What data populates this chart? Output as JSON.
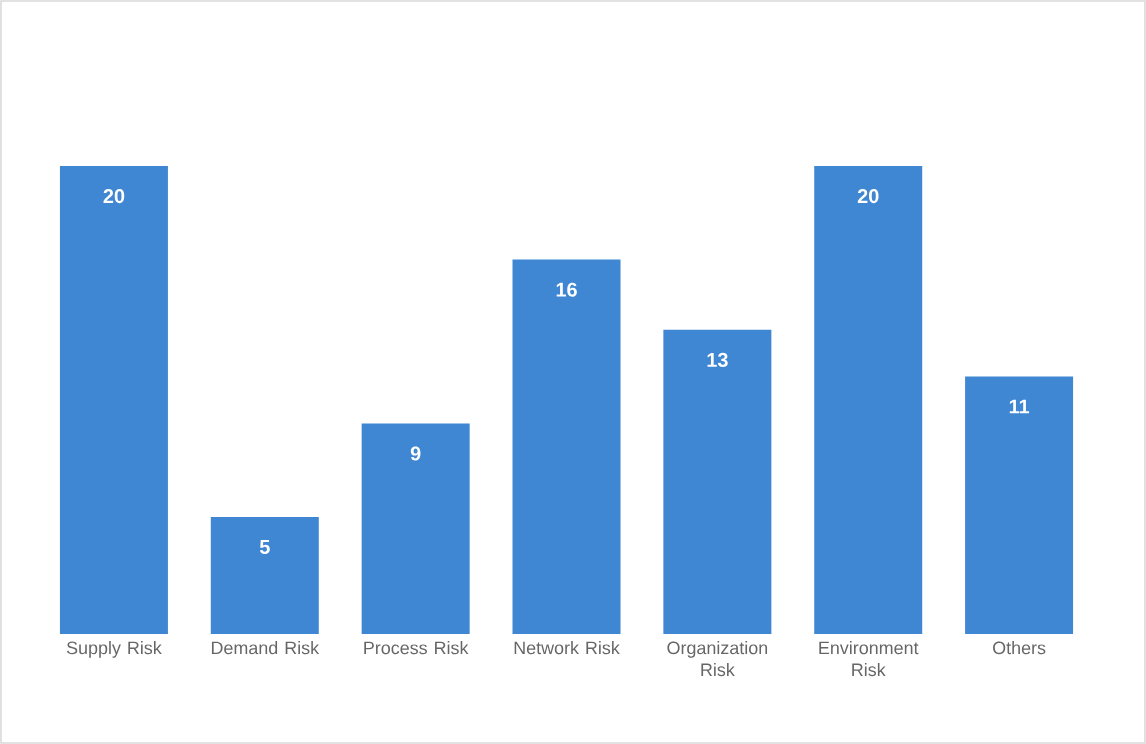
{
  "chart_data": {
    "type": "bar",
    "categories": [
      "Supply Risk",
      "Demand Risk",
      "Process Risk",
      "Network Risk",
      "Organization Risk",
      "Environment Risk",
      "Others"
    ],
    "values": [
      20,
      5,
      9,
      16,
      13,
      20,
      11
    ],
    "color": "#3f87d3",
    "data_labels": true
  }
}
